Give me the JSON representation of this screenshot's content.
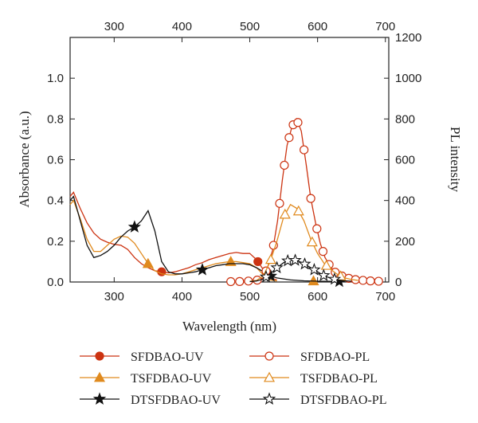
{
  "chart_data": {
    "type": "line",
    "xlabel": "Wavelength (nm)",
    "ylabel_left": "Absorbance (a.u.)",
    "ylabel_right": "PL intensity",
    "xlim": [
      235,
      705
    ],
    "ylim_left": [
      0,
      1.2
    ],
    "ylim_right": [
      0,
      1200
    ],
    "x_ticks_bottom": [
      300,
      400,
      500,
      600,
      700
    ],
    "x_ticks_top": [
      300,
      400,
      500,
      600,
      700
    ],
    "y_ticks_left": [
      "0.0",
      "0.2",
      "0.4",
      "0.6",
      "0.8",
      "1.0"
    ],
    "y_ticks_right": [
      "0",
      "200",
      "400",
      "600",
      "800",
      "1000",
      "1200"
    ],
    "legend_position": "bottom",
    "series": [
      {
        "name": "SFDBAO-UV",
        "axis": "left",
        "color": "#cc3311",
        "marker": "filled-circle",
        "x": [
          235,
          240,
          250,
          260,
          270,
          280,
          290,
          300,
          310,
          320,
          330,
          340,
          350,
          360,
          370,
          380,
          390,
          400,
          410,
          420,
          430,
          440,
          450,
          460,
          470,
          480,
          490,
          500,
          510,
          520,
          530,
          540
        ],
        "y": [
          0.42,
          0.44,
          0.36,
          0.29,
          0.24,
          0.21,
          0.195,
          0.185,
          0.18,
          0.16,
          0.12,
          0.09,
          0.07,
          0.055,
          0.05,
          0.045,
          0.05,
          0.06,
          0.07,
          0.085,
          0.095,
          0.11,
          0.12,
          0.13,
          0.14,
          0.145,
          0.14,
          0.14,
          0.11,
          0.06,
          0.02,
          0.01
        ],
        "marker_x": [
          370,
          512
        ]
      },
      {
        "name": "TSFDBAO-UV",
        "axis": "left",
        "color": "#e08a1e",
        "marker": "filled-triangle",
        "x": [
          235,
          240,
          250,
          260,
          270,
          280,
          290,
          300,
          310,
          320,
          330,
          340,
          350,
          360,
          370,
          380,
          390,
          400,
          410,
          420,
          430,
          440,
          450,
          460,
          470,
          480,
          490,
          500,
          510,
          520,
          530,
          540
        ],
        "y": [
          0.38,
          0.4,
          0.31,
          0.21,
          0.15,
          0.15,
          0.18,
          0.21,
          0.225,
          0.22,
          0.19,
          0.14,
          0.09,
          0.055,
          0.04,
          0.035,
          0.035,
          0.04,
          0.05,
          0.06,
          0.07,
          0.08,
          0.09,
          0.095,
          0.1,
          0.1,
          0.095,
          0.09,
          0.07,
          0.035,
          0.01,
          0.005
        ],
        "marker_x": [
          350,
          472,
          594
        ]
      },
      {
        "name": "DTSFDBAO-UV",
        "axis": "left",
        "color": "#111111",
        "marker": "filled-star",
        "x": [
          235,
          240,
          250,
          260,
          270,
          280,
          290,
          300,
          310,
          320,
          330,
          340,
          350,
          360,
          370,
          380,
          390,
          400,
          410,
          420,
          430,
          440,
          450,
          460,
          470,
          480,
          490,
          500,
          510,
          520,
          530,
          540,
          560,
          580,
          600,
          620,
          640
        ],
        "y": [
          0.4,
          0.42,
          0.3,
          0.18,
          0.12,
          0.13,
          0.15,
          0.18,
          0.22,
          0.25,
          0.27,
          0.3,
          0.35,
          0.25,
          0.1,
          0.05,
          0.04,
          0.04,
          0.045,
          0.05,
          0.06,
          0.07,
          0.08,
          0.085,
          0.09,
          0.09,
          0.09,
          0.085,
          0.07,
          0.05,
          0.03,
          0.02,
          0.01,
          0.006,
          0.004,
          0.003,
          0.002
        ],
        "marker_x": [
          330,
          430,
          531,
          632
        ]
      },
      {
        "name": "SFDBAO-PL",
        "axis": "right",
        "color": "#cc3311",
        "marker": "open-circle",
        "x": [
          480,
          490,
          500,
          510,
          520,
          527,
          534,
          541,
          548,
          555,
          562,
          569,
          576,
          583,
          590,
          597,
          604,
          611,
          618,
          625,
          632,
          639,
          646,
          653,
          660,
          667,
          674,
          681,
          688,
          695
        ],
        "y": [
          2,
          3,
          5,
          8,
          20,
          80,
          160,
          300,
          500,
          670,
          760,
          800,
          740,
          580,
          410,
          290,
          190,
          120,
          80,
          50,
          35,
          25,
          18,
          13,
          10,
          8,
          6,
          5,
          4,
          3
        ],
        "marker_x": [
          472,
          485,
          498,
          511,
          524,
          535,
          544,
          551,
          558,
          564,
          571,
          580,
          590,
          599,
          608,
          617,
          626,
          636,
          646,
          656,
          667,
          678,
          690
        ]
      },
      {
        "name": "TSFDBAO-PL",
        "axis": "right",
        "color": "#e08a1e",
        "marker": "open-triangle",
        "x": [
          500,
          510,
          520,
          530,
          540,
          550,
          560,
          570,
          580,
          590,
          600,
          610,
          620,
          630,
          640,
          650,
          660
        ],
        "y": [
          3,
          8,
          30,
          100,
          200,
          320,
          380,
          360,
          300,
          210,
          140,
          90,
          60,
          35,
          20,
          12,
          8
        ],
        "marker_x": [
          531,
          552,
          572,
          592,
          613,
          634
        ]
      },
      {
        "name": "DTSFDBAO-PL",
        "axis": "right",
        "color": "#111111",
        "marker": "open-star",
        "x": [
          500,
          510,
          520,
          530,
          540,
          550,
          560,
          570,
          580,
          590,
          600,
          610,
          620,
          630,
          640,
          650
        ],
        "y": [
          2,
          5,
          15,
          40,
          70,
          95,
          110,
          105,
          90,
          70,
          50,
          30,
          18,
          10,
          6,
          4
        ],
        "marker_x": [
          524,
          540,
          556,
          567,
          581,
          595,
          609,
          625
        ]
      }
    ]
  }
}
